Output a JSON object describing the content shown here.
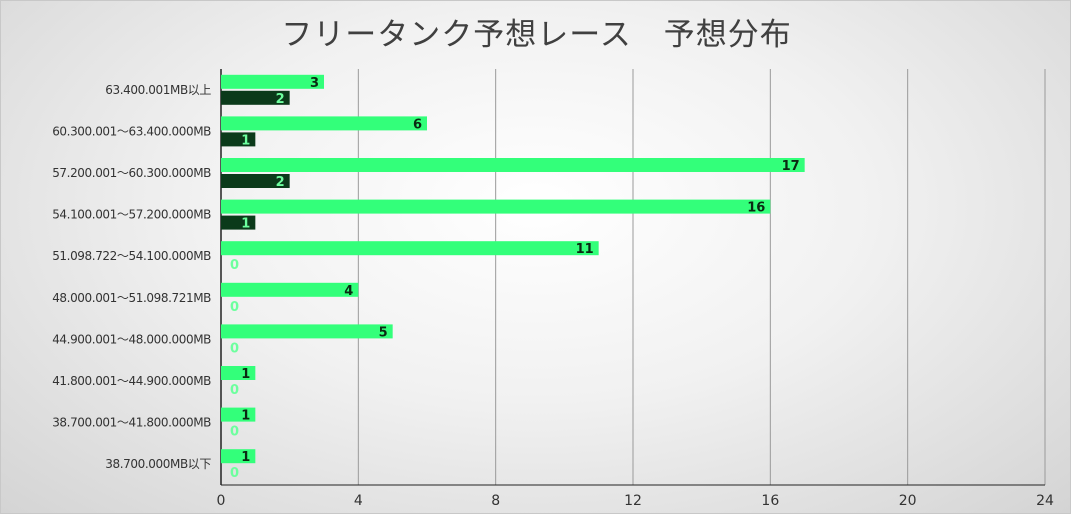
{
  "chart_data": {
    "type": "bar",
    "orientation": "horizontal",
    "title": "フリータンク予想レース　予想分布",
    "categories": [
      "63.400.001MB以上",
      "60.300.001～63.400.000MB",
      "57.200.001～60.300.000MB",
      "54.100.001～57.200.000MB",
      "51.098.722～54.100.000MB",
      "48.000.001～51.098.721MB",
      "44.900.001～48.000.000MB",
      "41.800.001～44.900.000MB",
      "38.700.001～41.800.000MB",
      "38.700.000MB以下"
    ],
    "series": [
      {
        "values": [
          3,
          6,
          17,
          16,
          11,
          4,
          5,
          1,
          1,
          1
        ],
        "color": "#33ff7a",
        "label_color": "#0a2a12"
      },
      {
        "values": [
          2,
          1,
          2,
          1,
          0,
          0,
          0,
          0,
          0,
          0
        ],
        "color": "#0b3a1a",
        "label_color": "#6dff9e"
      }
    ],
    "xlim": [
      0,
      24
    ],
    "xticks": [
      0,
      4,
      8,
      12,
      16,
      20,
      24
    ],
    "grid": "vertical",
    "legend": "none",
    "data_labels": true
  }
}
